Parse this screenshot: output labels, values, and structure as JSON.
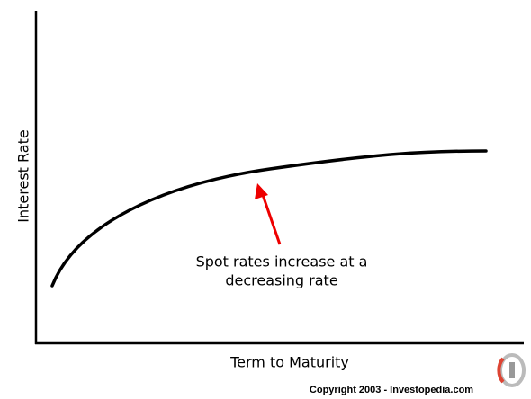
{
  "axes": {
    "y_label": "Interest Rate",
    "x_label": "Term to Maturity"
  },
  "annotation": {
    "lines": [
      "Spot rates increase at a",
      "decreasing rate"
    ]
  },
  "footer": {
    "copyright": "Copyright 2003 - Investopedia.com"
  }
}
